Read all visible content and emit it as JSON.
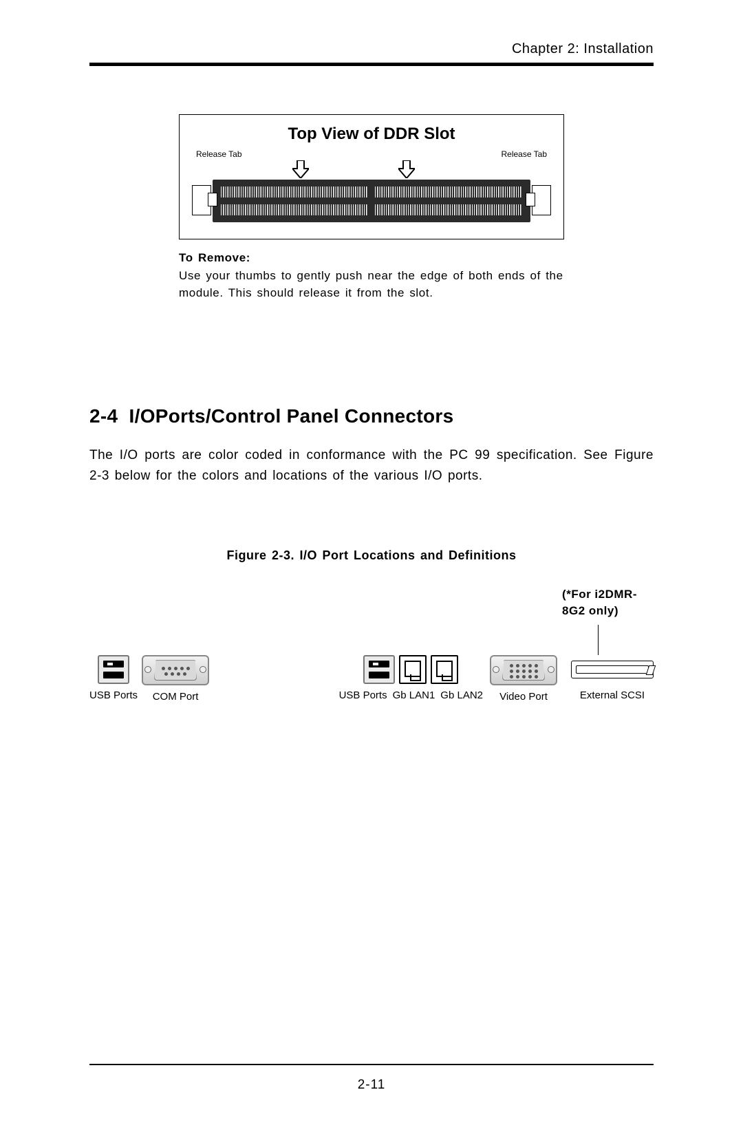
{
  "header": {
    "chapter_label": "Chapter 2: Installation"
  },
  "ddr_figure": {
    "title": "Top View of DDR Slot",
    "release_tab_left": "Release Tab",
    "release_tab_right": "Release Tab",
    "caption_bold": "To Remove:",
    "caption_body": "Use your thumbs to gently push near the edge of both ends of the module.  This should release it from the slot.",
    "arrow_color": "#000000",
    "slot_color": "#2b2b2b",
    "pin_color": "#ffffff",
    "box_border_color": "#000000"
  },
  "section": {
    "number": "2-4",
    "title": "I/OPorts/Control Panel Connectors",
    "body": "The I/O ports are color coded in conformance with the PC 99 specification. See Figure 2-3 below for the colors and locations of the various I/O ports."
  },
  "io_figure": {
    "title": "Figure 2-3.  I/O Port Locations and Definitions",
    "note_line1": "(*For i2DMR-",
    "note_line2": "8G2 only)",
    "ports": {
      "usb_left_label": "USB Ports",
      "com_label": "COM Port",
      "usb_right_label": "USB Ports",
      "lan1_label": "Gb LAN1",
      "lan2_label": "Gb LAN2",
      "video_label": "Video Port",
      "scsi_label": "External SCSI"
    },
    "com_pin_rows": [
      5,
      4
    ],
    "video_pin_rows": [
      5,
      5,
      5
    ],
    "port_shell_bg_top": "#f2f2f2",
    "port_shell_bg_bottom": "#cfcfcf",
    "port_border_color": "#888888",
    "pin_color": "#555555"
  },
  "footer": {
    "page_number": "2-11"
  },
  "colors": {
    "text": "#000000",
    "rule": "#000000",
    "page_bg": "#ffffff"
  }
}
